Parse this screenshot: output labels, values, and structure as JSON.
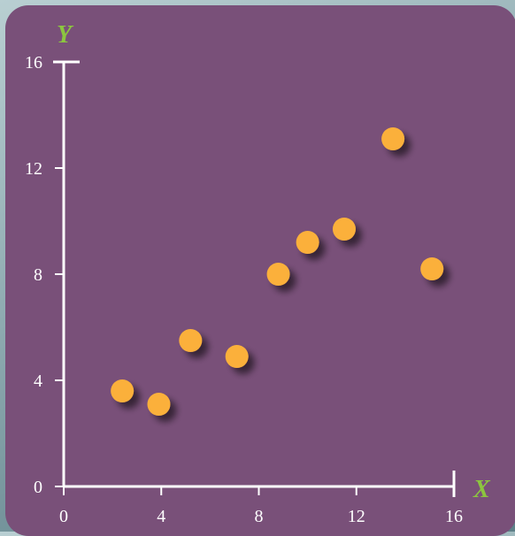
{
  "colors": {
    "panel_background": "#795079",
    "axis": "#ffffff",
    "point": "#fbb03b",
    "axis_title": "#8cc63f"
  },
  "chart_data": {
    "type": "scatter",
    "title": "",
    "xlabel": "X",
    "ylabel": "Y",
    "xlim": [
      0,
      16
    ],
    "ylim": [
      0,
      16
    ],
    "x_ticks": [
      0,
      4,
      8,
      12,
      16
    ],
    "y_ticks": [
      0,
      4,
      8,
      12,
      16
    ],
    "x_tick_labels": [
      "0",
      "4",
      "8",
      "12",
      "16"
    ],
    "y_tick_labels": [
      "0",
      "4",
      "8",
      "12",
      "16"
    ],
    "grid": false,
    "legend": "none",
    "points": [
      {
        "x": 2.4,
        "y": 3.6
      },
      {
        "x": 3.9,
        "y": 3.1
      },
      {
        "x": 5.2,
        "y": 5.5
      },
      {
        "x": 7.1,
        "y": 4.9
      },
      {
        "x": 8.8,
        "y": 8.0
      },
      {
        "x": 10.0,
        "y": 9.2
      },
      {
        "x": 11.5,
        "y": 9.7
      },
      {
        "x": 13.5,
        "y": 13.1
      },
      {
        "x": 15.1,
        "y": 8.2
      }
    ]
  }
}
